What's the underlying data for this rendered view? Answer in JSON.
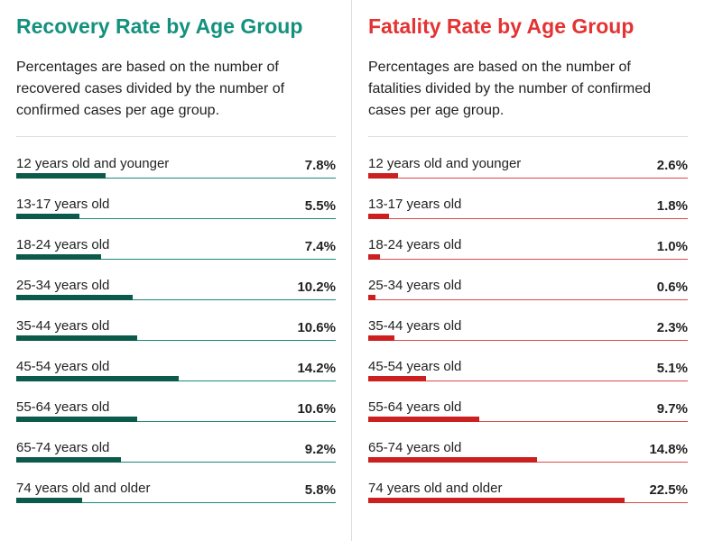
{
  "colors": {
    "recovery_title": "#14917e",
    "recovery_bar": "#0b5a4a",
    "recovery_line": "#1a8a7a",
    "fatality_title": "#e33333",
    "fatality_bar": "#cc1f1f",
    "fatality_line": "#e04848"
  },
  "chart_data": [
    {
      "type": "bar",
      "orientation": "horizontal",
      "title": "Recovery Rate by Age Group",
      "subtitle": "Percentages are based on the number of recovered cases divided by the number of confirmed cases per age group.",
      "categories": [
        "12 years old and younger",
        "13-17 years old",
        "18-24 years old",
        "25-34 years old",
        "35-44 years old",
        "45-54 years old",
        "55-64 years old",
        "65-74 years old",
        "74 years old and older"
      ],
      "values": [
        7.8,
        5.5,
        7.4,
        10.2,
        10.6,
        14.2,
        10.6,
        9.2,
        5.8
      ],
      "value_labels": [
        "7.8%",
        "5.5%",
        "7.4%",
        "10.2%",
        "10.6%",
        "14.2%",
        "10.6%",
        "9.2%",
        "5.8%"
      ],
      "xlim": [
        0,
        28
      ],
      "unit": "%"
    },
    {
      "type": "bar",
      "orientation": "horizontal",
      "title": "Fatality Rate by Age Group",
      "subtitle": "Percentages are based on the number of fatalities divided by the number of confirmed cases per age group.",
      "categories": [
        "12 years old and younger",
        "13-17 years old",
        "18-24 years old",
        "25-34 years old",
        "35-44 years old",
        "45-54 years old",
        "55-64 years old",
        "65-74 years old",
        "74 years old and older"
      ],
      "values": [
        2.6,
        1.8,
        1.0,
        0.6,
        2.3,
        5.1,
        9.7,
        14.8,
        22.5
      ],
      "value_labels": [
        "2.6%",
        "1.8%",
        "1.0%",
        "0.6%",
        "2.3%",
        "5.1%",
        "9.7%",
        "14.8%",
        "22.5%"
      ],
      "xlim": [
        0,
        28
      ],
      "unit": "%"
    }
  ]
}
